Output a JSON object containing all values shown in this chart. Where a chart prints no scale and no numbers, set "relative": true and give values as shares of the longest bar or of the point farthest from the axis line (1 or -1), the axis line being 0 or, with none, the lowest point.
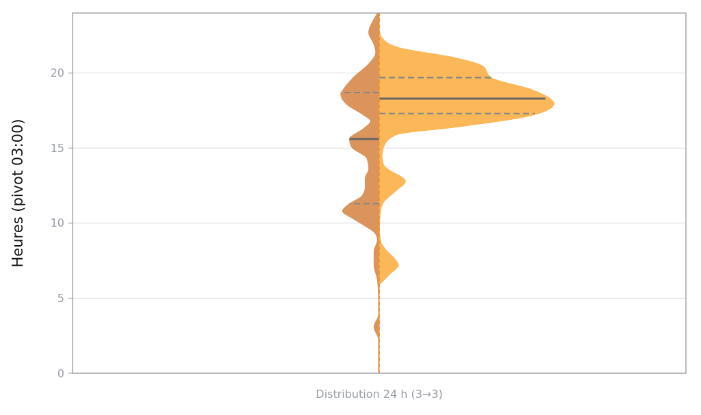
{
  "chart_data": {
    "type": "area",
    "orientation": "horizontal",
    "relative": true,
    "xlabel": "Distribution 24 h (3→3)",
    "ylabel": "Heures (pivot 03:00)",
    "ylim": [
      0,
      24
    ],
    "yticks": [
      0,
      5,
      10,
      15,
      20
    ],
    "grid": "y",
    "series": [
      {
        "color": "#d98b4f",
        "x": [
          24.0,
          23.6,
          22.7,
          21.9,
          21.4,
          20.5,
          19.8,
          19.0,
          18.6,
          17.95,
          17.2,
          16.8,
          16.3,
          15.6,
          15.1,
          14.3,
          13.6,
          13.0,
          12.4,
          11.8,
          11.3,
          10.8,
          10.3,
          9.8,
          9.4,
          8.9,
          8.1,
          7.2,
          6.2,
          5.0,
          3.9,
          3.1,
          2.2,
          0.5,
          0.0
        ],
        "values": [
          -0.01,
          -0.03,
          -0.06,
          -0.03,
          -0.02,
          -0.07,
          -0.14,
          -0.2,
          -0.22,
          -0.19,
          -0.09,
          -0.05,
          -0.09,
          -0.17,
          -0.16,
          -0.07,
          -0.06,
          -0.08,
          -0.08,
          -0.1,
          -0.17,
          -0.21,
          -0.15,
          -0.08,
          -0.03,
          -0.01,
          -0.03,
          -0.03,
          -0.01,
          -0.004,
          -0.004,
          -0.03,
          -0.004,
          -0.004,
          -0.004
        ]
      },
      {
        "color": "#fcb24a",
        "x": [
          22.8,
          22.3,
          21.7,
          21.0,
          20.4,
          19.95,
          19.7,
          18.86,
          17.95,
          17.2,
          16.4,
          15.9,
          15.2,
          14.5,
          13.9,
          13.6,
          12.8,
          12.1,
          11.3,
          10.5,
          9.5,
          8.8,
          8.2,
          7.6,
          7.2,
          6.6,
          6.0,
          5.9
        ],
        "values": [
          0.0,
          0.02,
          0.11,
          0.44,
          0.6,
          0.62,
          0.64,
          0.88,
          1.0,
          0.88,
          0.44,
          0.1,
          0.03,
          0.016,
          0.024,
          0.05,
          0.15,
          0.09,
          0.02,
          0.004,
          0.002,
          0.008,
          0.04,
          0.09,
          0.11,
          0.06,
          0.01,
          0.0
        ]
      },
      {
        "type": "line",
        "color": "#888888",
        "line_style": "dashed",
        "x": [
          11.3,
          11.3
        ],
        "values": [
          0,
          -0.17
        ]
      },
      {
        "type": "line",
        "color": "#666666",
        "line_style": "solid",
        "x": [
          15.6,
          15.6
        ],
        "values": [
          0,
          -0.17
        ]
      },
      {
        "type": "line",
        "color": "#888888",
        "line_style": "dashed",
        "x": [
          18.7,
          18.7
        ],
        "values": [
          0,
          -0.22
        ]
      },
      {
        "type": "line",
        "color": "#888888",
        "line_style": "dashed",
        "x": [
          17.3,
          17.3
        ],
        "values": [
          0,
          0.89
        ]
      },
      {
        "type": "line",
        "color": "#666666",
        "line_style": "solid",
        "x": [
          18.3,
          18.3
        ],
        "values": [
          0,
          0.95
        ]
      },
      {
        "type": "line",
        "color": "#888888",
        "line_style": "dashed",
        "x": [
          19.7,
          19.7
        ],
        "values": [
          0,
          0.64
        ]
      }
    ]
  }
}
